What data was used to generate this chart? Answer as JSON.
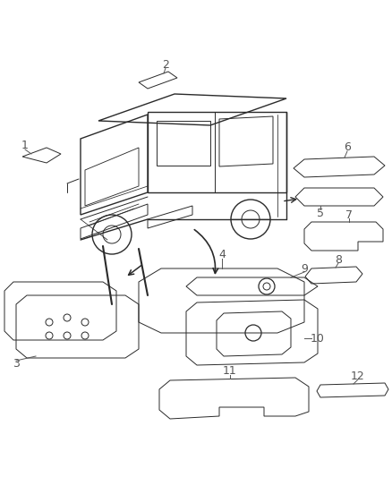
{
  "background_color": "#ffffff",
  "line_color": "#2a2a2a",
  "label_color": "#555555",
  "figsize": [
    4.38,
    5.33
  ],
  "dpi": 100
}
